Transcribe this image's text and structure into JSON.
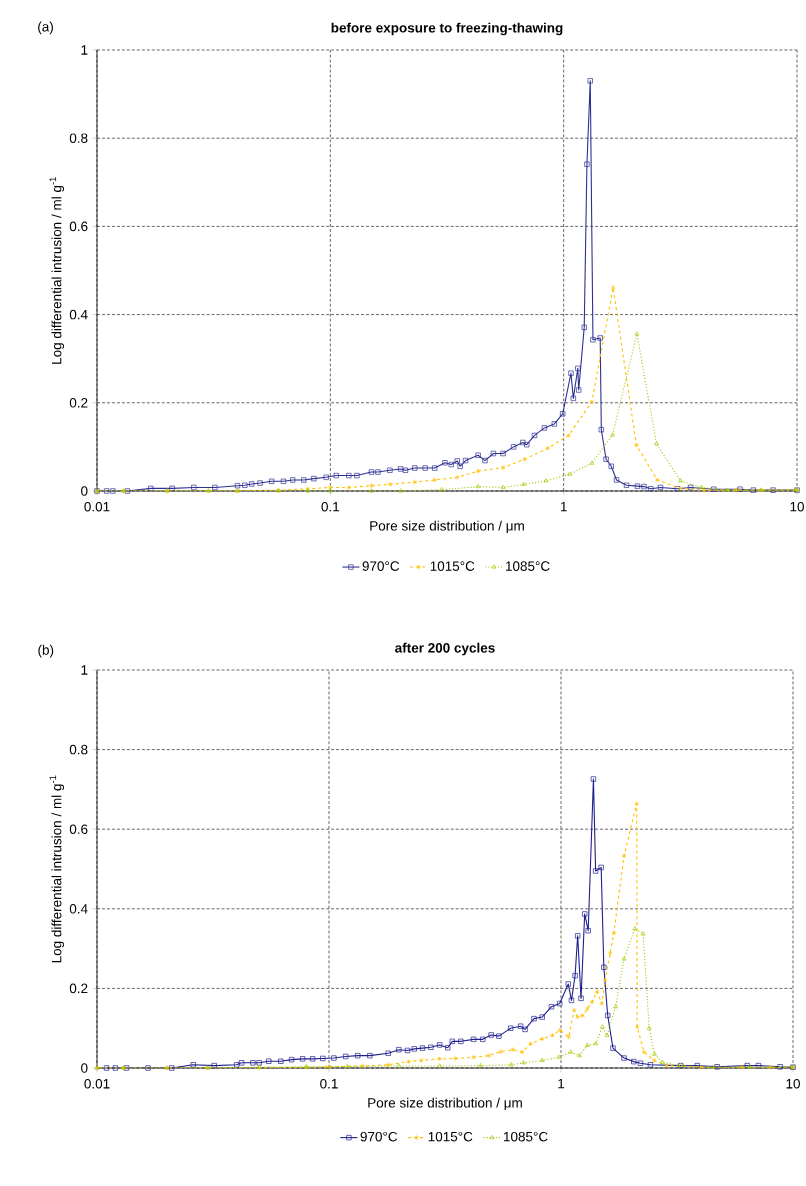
{
  "chart_data": [
    {
      "type": "line",
      "title": "before exposure to freezing-thawing",
      "xlabel": "Pore size distribution / μm",
      "ylabel": "Log differential intrusion / ml g$^{-1}$",
      "annotations": [
        "(a)"
      ],
      "log": "x",
      "grid": true,
      "legend": "bottom",
      "xlim": [
        0.01,
        10
      ],
      "xticks": [
        0.01,
        0.1,
        1,
        10
      ],
      "ylim": [
        0,
        1
      ],
      "yticks": [
        0,
        0.2,
        0.4,
        0.6,
        0.8,
        1
      ],
      "series": [
        {
          "name": "970°C",
          "color": "#2e3192",
          "marker": "square",
          "line_style": "solid",
          "x": [
            0.01,
            0.011,
            0.0117,
            0.0135,
            0.017,
            0.021,
            0.026,
            0.032,
            0.04,
            0.043,
            0.046,
            0.05,
            0.056,
            0.063,
            0.069,
            0.077,
            0.085,
            0.096,
            0.106,
            0.12,
            0.13,
            0.15,
            0.16,
            0.18,
            0.2,
            0.21,
            0.23,
            0.255,
            0.28,
            0.31,
            0.33,
            0.35,
            0.36,
            0.38,
            0.43,
            0.46,
            0.5,
            0.55,
            0.61,
            0.668,
            0.695,
            0.75,
            0.827,
            0.912,
            0.99,
            1.075,
            1.1,
            1.15,
            1.16,
            1.225,
            1.258,
            1.3,
            1.335,
            1.434,
            1.45,
            1.52,
            1.6,
            1.685,
            1.86,
            2.07,
            2.21,
            2.36,
            2.6,
            3.07,
            3.5,
            4.4,
            5.7,
            6.5,
            7.9,
            10
          ],
          "values": [
            0,
            0,
            0,
            0,
            0.006,
            0.006,
            0.008,
            0.008,
            0.012,
            0.013,
            0.016,
            0.018,
            0.022,
            0.022,
            0.025,
            0.025,
            0.028,
            0.031,
            0.035,
            0.035,
            0.035,
            0.043,
            0.043,
            0.047,
            0.05,
            0.047,
            0.052,
            0.052,
            0.052,
            0.064,
            0.06,
            0.068,
            0.056,
            0.069,
            0.081,
            0.069,
            0.085,
            0.085,
            0.1,
            0.11,
            0.105,
            0.126,
            0.143,
            0.152,
            0.175,
            0.267,
            0.21,
            0.278,
            0.229,
            0.371,
            0.741,
            0.93,
            0.343,
            0.347,
            0.139,
            0.072,
            0.056,
            0.025,
            0.013,
            0.011,
            0.01,
            0.005,
            0.008,
            0.005,
            0.008,
            0.004,
            0.004,
            0.002,
            0.002,
            0.002
          ]
        },
        {
          "name": "1015°C",
          "color": "#ffc000",
          "marker": "cross",
          "line_style": "dashed",
          "x": [
            0.01,
            0.013,
            0.02,
            0.03,
            0.04,
            0.06,
            0.08,
            0.1,
            0.12,
            0.15,
            0.18,
            0.23,
            0.28,
            0.35,
            0.43,
            0.55,
            0.68,
            0.855,
            1.05,
            1.32,
            1.63,
            2.05,
            2.52,
            3.17,
            4.0,
            5.5,
            7.0,
            10
          ],
          "values": [
            0,
            0,
            0,
            0,
            0,
            0.002,
            0.005,
            0.008,
            0.008,
            0.012,
            0.015,
            0.02,
            0.025,
            0.031,
            0.045,
            0.053,
            0.072,
            0.097,
            0.126,
            0.202,
            0.461,
            0.104,
            0.025,
            0.006,
            0.002,
            0.002,
            0.002,
            0.002
          ]
        },
        {
          "name": "1085°C",
          "color": "#99cc00",
          "marker": "triangle",
          "line_style": "dotted",
          "x": [
            0.01,
            0.013,
            0.02,
            0.03,
            0.04,
            0.06,
            0.08,
            0.1,
            0.15,
            0.2,
            0.3,
            0.43,
            0.55,
            0.675,
            0.84,
            1.06,
            1.32,
            1.62,
            2.06,
            2.5,
            3.17,
            3.9,
            5.0,
            7.0,
            10
          ],
          "values": [
            0,
            0,
            0,
            0,
            0,
            0,
            0,
            0,
            0,
            0,
            0.003,
            0.01,
            0.008,
            0.015,
            0.023,
            0.038,
            0.063,
            0.127,
            0.356,
            0.107,
            0.023,
            0.008,
            0.002,
            0.002,
            0.002
          ]
        }
      ]
    },
    {
      "type": "line",
      "title": "after 200 cycles",
      "xlabel": "Pore size distribution / μm",
      "ylabel": "Log differential intrusion / ml g$^{-1}$",
      "annotations": [
        "(b)"
      ],
      "log": "x",
      "grid": true,
      "legend": "bottom",
      "xlim": [
        0.01,
        10
      ],
      "xticks": [
        0.01,
        0.1,
        1,
        10
      ],
      "ylim": [
        0,
        1
      ],
      "yticks": [
        0,
        0.2,
        0.4,
        0.6,
        0.8,
        1
      ],
      "series": [
        {
          "name": "970°C",
          "color": "#1f1f8f",
          "marker": "square",
          "line_style": "solid",
          "x": [
            0.011,
            0.012,
            0.0134,
            0.0166,
            0.021,
            0.026,
            0.032,
            0.04,
            0.042,
            0.047,
            0.05,
            0.055,
            0.062,
            0.069,
            0.077,
            0.085,
            0.094,
            0.105,
            0.118,
            0.133,
            0.15,
            0.18,
            0.2,
            0.218,
            0.233,
            0.253,
            0.275,
            0.3,
            0.325,
            0.34,
            0.37,
            0.42,
            0.46,
            0.5,
            0.54,
            0.607,
            0.67,
            0.7,
            0.765,
            0.83,
            0.91,
            0.987,
            1.075,
            1.11,
            1.15,
            1.18,
            1.22,
            1.265,
            1.31,
            1.38,
            1.41,
            1.49,
            1.53,
            1.59,
            1.675,
            1.87,
            2.06,
            2.2,
            2.43,
            3.28,
            3.87,
            4.71,
            6.35,
            7.1,
            8.8,
            10
          ],
          "values": [
            0,
            0,
            0,
            0,
            0,
            0.008,
            0.006,
            0.008,
            0.013,
            0.013,
            0.013,
            0.017,
            0.017,
            0.021,
            0.023,
            0.023,
            0.024,
            0.025,
            0.029,
            0.031,
            0.031,
            0.037,
            0.046,
            0.044,
            0.048,
            0.05,
            0.052,
            0.058,
            0.051,
            0.067,
            0.067,
            0.072,
            0.072,
            0.083,
            0.08,
            0.1,
            0.105,
            0.097,
            0.124,
            0.128,
            0.154,
            0.162,
            0.211,
            0.17,
            0.232,
            0.332,
            0.175,
            0.387,
            0.345,
            0.726,
            0.495,
            0.504,
            0.253,
            0.132,
            0.05,
            0.025,
            0.016,
            0.012,
            0.008,
            0.006,
            0.006,
            0.003,
            0.006,
            0.006,
            0.003,
            0.002
          ]
        },
        {
          "name": "1015°C",
          "color": "#ffc000",
          "marker": "cross",
          "line_style": "dashed",
          "x": [
            0.01,
            0.013,
            0.02,
            0.03,
            0.05,
            0.08,
            0.1,
            0.14,
            0.18,
            0.22,
            0.25,
            0.3,
            0.35,
            0.42,
            0.49,
            0.55,
            0.62,
            0.68,
            0.74,
            0.83,
            0.92,
            0.99,
            1.08,
            1.14,
            1.18,
            1.24,
            1.3,
            1.36,
            1.43,
            1.5,
            1.55,
            1.63,
            1.69,
            1.87,
            2.12,
            2.13,
            2.28,
            2.52,
            2.87,
            4.0,
            6.0,
            8.0,
            10
          ],
          "values": [
            0,
            0,
            0,
            0,
            0,
            0.002,
            0.003,
            0.005,
            0.008,
            0.016,
            0.019,
            0.023,
            0.024,
            0.027,
            0.031,
            0.041,
            0.046,
            0.04,
            0.061,
            0.073,
            0.082,
            0.095,
            0.078,
            0.145,
            0.128,
            0.132,
            0.149,
            0.166,
            0.192,
            0.162,
            0.221,
            0.289,
            0.339,
            0.533,
            0.664,
            0.103,
            0.04,
            0.019,
            0.006,
            0.002,
            0.002,
            0.002,
            0.002
          ]
        },
        {
          "name": "1085°C",
          "color": "#99cc00",
          "marker": "triangle",
          "line_style": "dotted",
          "x": [
            0.01,
            0.013,
            0.02,
            0.03,
            0.05,
            0.08,
            0.12,
            0.2,
            0.3,
            0.45,
            0.61,
            0.69,
            0.83,
            0.98,
            1.1,
            1.2,
            1.3,
            1.41,
            1.51,
            1.58,
            1.72,
            1.87,
            2.08,
            2.26,
            2.4,
            2.53,
            2.74,
            3.28,
            4.5,
            6.5,
            10
          ],
          "values": [
            0,
            0,
            0,
            0,
            0.002,
            0.003,
            0.004,
            0.005,
            0.005,
            0.006,
            0.008,
            0.013,
            0.019,
            0.027,
            0.04,
            0.031,
            0.057,
            0.061,
            0.103,
            0.082,
            0.154,
            0.274,
            0.35,
            0.337,
            0.1,
            0.035,
            0.014,
            0.006,
            0.002,
            0.002,
            0.002
          ]
        }
      ]
    }
  ]
}
